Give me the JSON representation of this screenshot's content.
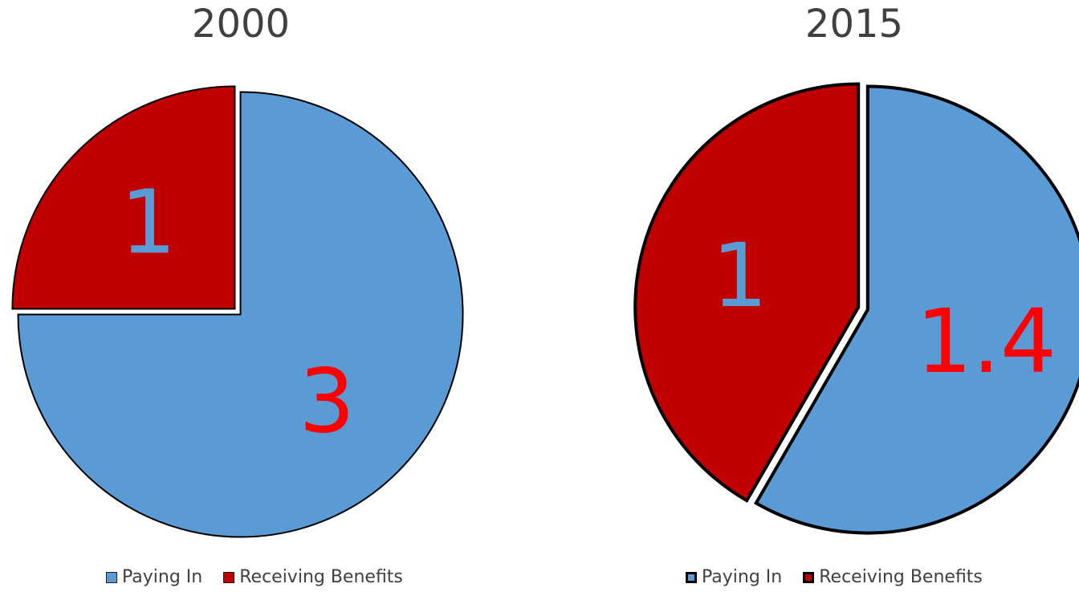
{
  "colors": {
    "paying_in": "#5B9BD5",
    "receiving_benefits": "#C00000",
    "label_on_blue": "#FF0000",
    "label_on_red": "#5B9BD5",
    "outline": "#000000"
  },
  "chart_data": [
    {
      "type": "pie",
      "title": "2000",
      "legend_position": "bottom",
      "slices": [
        {
          "name": "Paying In",
          "value": 3,
          "label": "3"
        },
        {
          "name": "Receiving Benefits",
          "value": 1,
          "label": "1"
        }
      ]
    },
    {
      "type": "pie",
      "title": "2015",
      "legend_position": "bottom",
      "slices": [
        {
          "name": "Paying In",
          "value": 1.4,
          "label": "1.4"
        },
        {
          "name": "Receiving Benefits",
          "value": 1,
          "label": "1"
        }
      ]
    }
  ]
}
